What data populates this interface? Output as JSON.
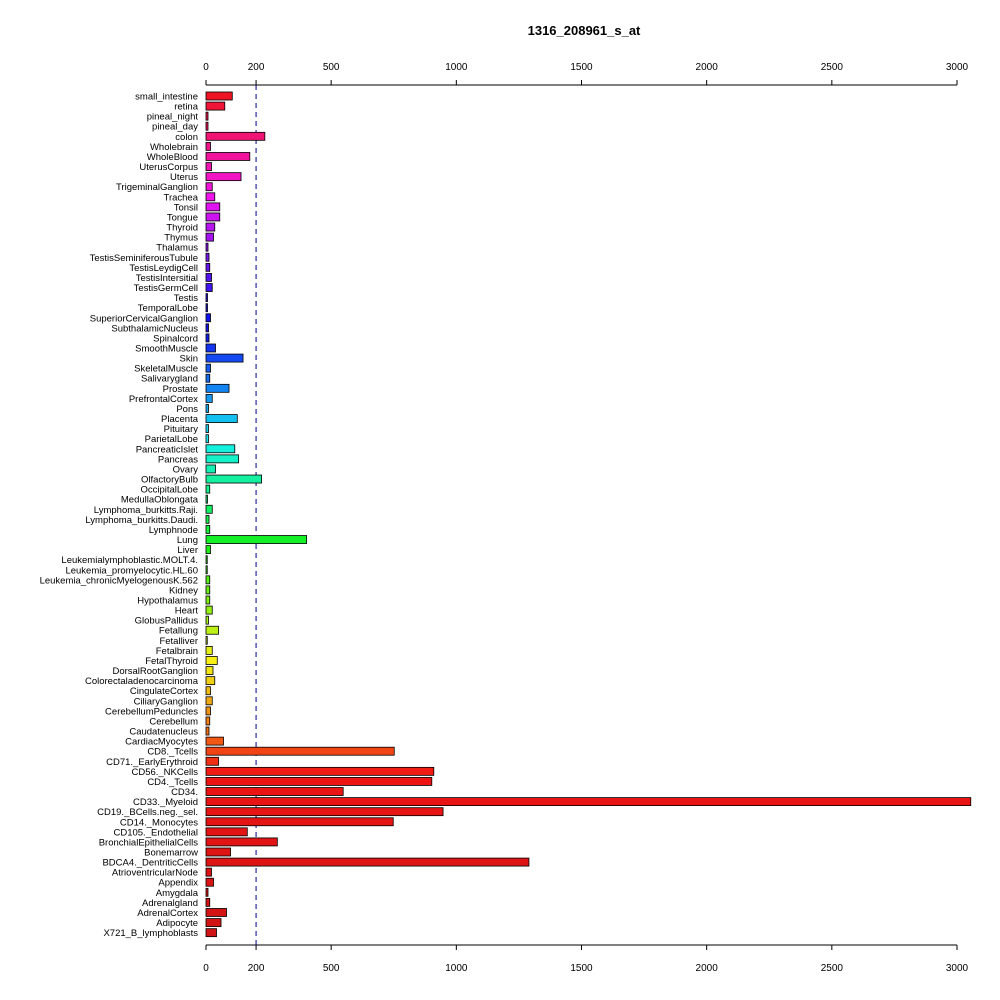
{
  "chart_data": {
    "type": "bar",
    "orientation": "horizontal",
    "title": "1316_208961_s_at",
    "xlabel": "",
    "ylabel": "",
    "xlim": [
      0,
      3000
    ],
    "x_ticks": [
      0,
      200,
      500,
      1000,
      1500,
      2000,
      2500,
      3000
    ],
    "reference_line": 200,
    "reference_line_color": "#00008b",
    "bar_border_color": "#000000",
    "grid": false,
    "categories": [
      "small_intestine",
      "retina",
      "pineal_night",
      "pineal_day",
      "colon",
      "Wholebrain",
      "WholeBlood",
      "UterusCorpus",
      "Uterus",
      "TrigeminalGanglion",
      "Trachea",
      "Tonsil",
      "Tongue",
      "Thyroid",
      "Thymus",
      "Thalamus",
      "TestisSeminiferousTubule",
      "TestisLeydigCell",
      "TestisIntersitial",
      "TestisGermCell",
      "Testis",
      "TemporalLobe",
      "SuperiorCervicalGanglion",
      "SubthalamicNucleus",
      "Spinalcord",
      "SmoothMuscle",
      "Skin",
      "SkeletalMuscle",
      "Salivarygland",
      "Prostate",
      "PrefrontalCortex",
      "Pons",
      "Placenta",
      "Pituitary",
      "ParietalLobe",
      "PancreaticIslet",
      "Pancreas",
      "Ovary",
      "OlfactoryBulb",
      "OccipitalLobe",
      "MedullaOblongata",
      "Lymphoma_burkitts.Raji.",
      "Lymphoma_burkitts.Daudi.",
      "Lymphnode",
      "Lung",
      "Liver",
      "Leukemialymphoblastic.MOLT.4.",
      "Leukemia_promyelocytic.HL.60",
      "Leukemia_chronicMyelogenousK.562",
      "Kidney",
      "Hypothalamus",
      "Heart",
      "GlobusPallidus",
      "Fetallung",
      "Fetalliver",
      "Fetalbrain",
      "FetalThyroid",
      "DorsalRootGanglion",
      "Colorectaladenocarcinoma",
      "CingulateCortex",
      "CiliaryGanglion",
      "CerebellumPeduncles",
      "Cerebellum",
      "Caudatenucleus",
      "CardiacMyocytes",
      "CD8._Tcells",
      "CD71._EarlyErythroid",
      "CD56._NKCells",
      "CD4._Tcells",
      "CD34.",
      "CD33._Myeloid",
      "CD19._BCells.neg._sel.",
      "CD14._Monocytes",
      "CD105._Endothelial",
      "BronchialEpithelialCells",
      "Bonemarrow",
      "BDCA4._DentriticCells",
      "AtrioventricularNode",
      "Appendix",
      "Amygdala",
      "Adrenalgland",
      "AdrenalCortex",
      "Adipocyte",
      "X721_B_lymphoblasts"
    ],
    "values": [
      105,
      75,
      8,
      8,
      235,
      18,
      175,
      22,
      140,
      25,
      35,
      55,
      55,
      35,
      30,
      8,
      12,
      15,
      22,
      25,
      6,
      6,
      18,
      10,
      12,
      38,
      148,
      18,
      15,
      92,
      25,
      10,
      125,
      10,
      10,
      115,
      130,
      38,
      222,
      15,
      6,
      25,
      12,
      15,
      402,
      18,
      5,
      5,
      15,
      15,
      15,
      25,
      10,
      50,
      5,
      25,
      45,
      28,
      35,
      18,
      25,
      18,
      15,
      12,
      70,
      752,
      50,
      910,
      902,
      548,
      3055,
      947,
      748,
      165,
      285,
      98,
      1290,
      22,
      30,
      8,
      15,
      82,
      60,
      42
    ],
    "colors": [
      "#ee1424",
      "#ef1438",
      "#f0144c",
      "#f01460",
      "#f01474",
      "#f01488",
      "#f0149c",
      "#f014b0",
      "#f014c4",
      "#f014d8",
      "#f014ec",
      "#e014f0",
      "#cc14f0",
      "#b814f0",
      "#a414f0",
      "#9014f0",
      "#7c14f0",
      "#6814f0",
      "#5414f0",
      "#4014f0",
      "#2c14f0",
      "#1814f0",
      "#1414f0",
      "#1414f0",
      "#1420f0",
      "#1434f0",
      "#1448f0",
      "#145cf0",
      "#1470f0",
      "#1484f0",
      "#1498f0",
      "#14acf0",
      "#14c0f0",
      "#14d4f0",
      "#14e8f0",
      "#14f0dc",
      "#14f0c8",
      "#14f0b4",
      "#14f0a0",
      "#14f08c",
      "#14f078",
      "#14f064",
      "#14f050",
      "#14f03c",
      "#14f028",
      "#1cf014",
      "#30f014",
      "#44f014",
      "#58f014",
      "#6cf014",
      "#80f014",
      "#94f014",
      "#a8f014",
      "#bcf014",
      "#d0f014",
      "#e4f014",
      "#f8f014",
      "#f0e414",
      "#f0d014",
      "#f0bc14",
      "#f0a814",
      "#f09414",
      "#f08014",
      "#f06c14",
      "#f05814",
      "#f04414",
      "#f03014",
      "#f01c14",
      "#ee1414",
      "#ea1414",
      "#e81414",
      "#e61414",
      "#e41414",
      "#e21414",
      "#e01414",
      "#de1414",
      "#dc1414",
      "#da1414",
      "#d81414",
      "#d61414",
      "#d41414",
      "#d21414",
      "#d01414",
      "#ce1414"
    ]
  }
}
